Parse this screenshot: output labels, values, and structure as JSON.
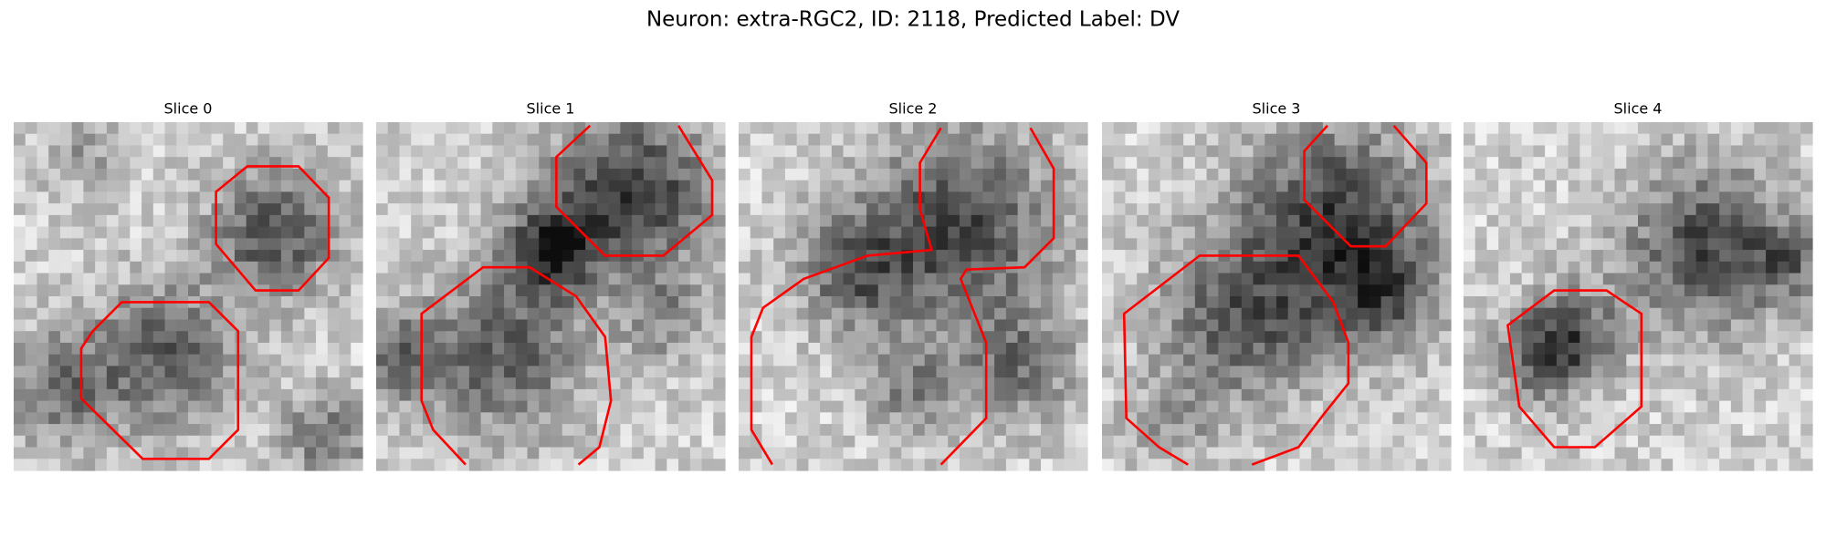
{
  "figure": {
    "title": "Neuron: extra-RGC2, ID: 2118, Predicted Label: DV",
    "panels": [
      "Slice 0",
      "Slice 1",
      "Slice 2",
      "Slice 3",
      "Slice 4"
    ]
  }
}
